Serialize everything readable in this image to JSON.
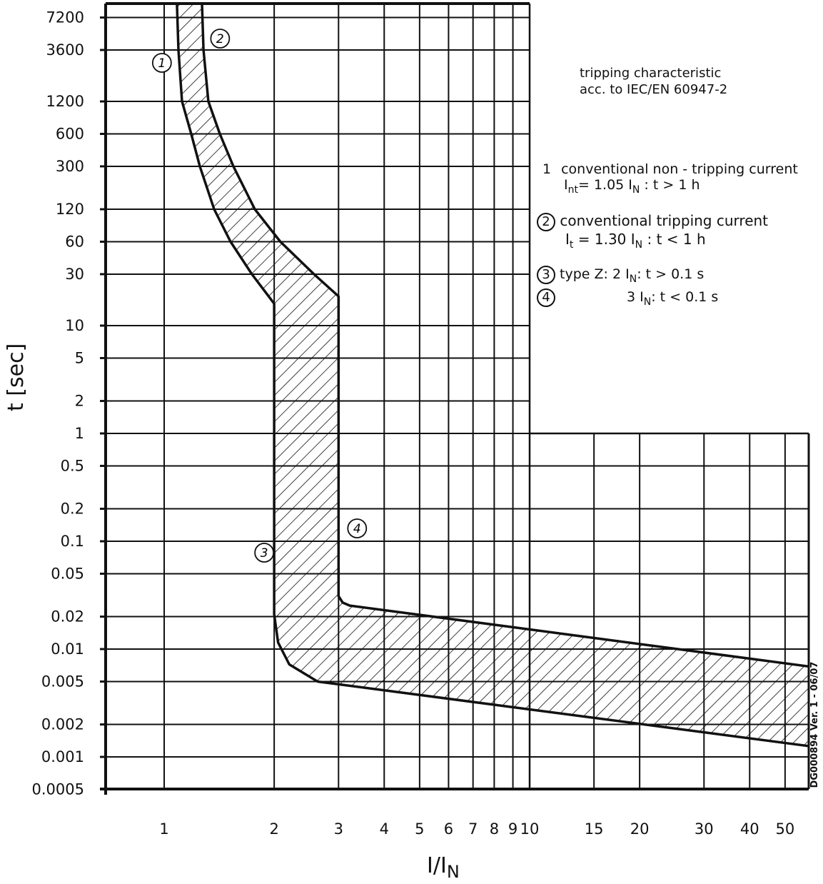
{
  "chart_data": {
    "type": "area",
    "title": "tripping characteristic",
    "subtitle": "acc. to IEC/EN 60947-2",
    "xlabel": "I/IN",
    "xlabel_main": "I/I",
    "xlabel_sub": "N",
    "ylabel": "t [sec]",
    "x_scale": "log",
    "y_scale": "log",
    "xlim": [
      0.69,
      58
    ],
    "ylim": [
      0.0005,
      9600
    ],
    "grid": true,
    "x_ticks": [
      "1",
      "2",
      "3",
      "4",
      "5",
      "6",
      "7",
      "8",
      "9",
      "10",
      "15",
      "20",
      "30",
      "40",
      "50"
    ],
    "x_tick_values": [
      1,
      2,
      3,
      4,
      5,
      6,
      7,
      8,
      9,
      10,
      15,
      20,
      30,
      40,
      50
    ],
    "y_ticks": [
      "7200",
      "3600",
      "1200",
      "600",
      "300",
      "120",
      "60",
      "30",
      "10",
      "5",
      "2",
      "1",
      "0.5",
      "0.2",
      "0.1",
      "0.05",
      "0.02",
      "0.01",
      "0.005",
      "0.002",
      "0.001",
      "0.0005"
    ],
    "y_tick_values": [
      7200,
      3600,
      1200,
      600,
      300,
      120,
      60,
      30,
      10,
      5,
      2,
      1,
      0.5,
      0.2,
      0.1,
      0.05,
      0.02,
      0.01,
      0.005,
      0.002,
      0.001,
      0.0005
    ],
    "band": {
      "lower_boundary": [
        [
          1.084,
          9600
        ],
        [
          1.094,
          3600
        ],
        [
          1.119,
          1200
        ],
        [
          1.186,
          600
        ],
        [
          1.252,
          300
        ],
        [
          1.37,
          120
        ],
        [
          1.519,
          60
        ],
        [
          1.738,
          30
        ],
        [
          2.0,
          16
        ],
        [
          2.0,
          0.021
        ],
        [
          2.05,
          0.0115
        ],
        [
          2.2,
          0.0072
        ],
        [
          2.63,
          0.005
        ],
        [
          58,
          0.00126
        ]
      ],
      "upper_boundary": [
        [
          1.269,
          9600
        ],
        [
          1.281,
          3600
        ],
        [
          1.321,
          1200
        ],
        [
          1.42,
          600
        ],
        [
          1.547,
          300
        ],
        [
          1.77,
          120
        ],
        [
          2.08,
          60
        ],
        [
          2.57,
          30
        ],
        [
          3.0,
          18.7
        ],
        [
          3.0,
          0.031
        ],
        [
          3.08,
          0.027
        ],
        [
          3.22,
          0.0253
        ],
        [
          58,
          0.0069
        ]
      ],
      "fill": "hatched"
    },
    "markers": [
      {
        "label": "1",
        "I": 1.05,
        "t": 3600
      },
      {
        "label": "2",
        "I": 1.3,
        "t": 3600
      },
      {
        "label": "3",
        "I": 2,
        "t": 0.1
      },
      {
        "label": "4",
        "I": 3,
        "t": 0.1
      }
    ],
    "legend": [
      {
        "num": "1",
        "line1": "conventional non - tripping current",
        "line2_pre": "I",
        "line2_sub": "nt",
        "line2_mid": "= 1.05 I",
        "line2_sub2": "N",
        "line2_post": " : t > 1 h"
      },
      {
        "num": "2",
        "line1": "conventional tripping current",
        "line2_pre": "I",
        "line2_sub": "t",
        "line2_mid": " = 1.30 I",
        "line2_sub2": "N",
        "line2_post": " : t < 1 h"
      },
      {
        "num": "3",
        "line1_pre": "type Z:  2 I",
        "line1_sub": "N",
        "line1_post": ": t > 0.1 s"
      },
      {
        "num": "4",
        "line1_pre": "3 I",
        "line1_sub": "N",
        "line1_post": ": t < 0.1 s"
      }
    ],
    "doc_id": "DG000894 Ver. 1 - 06/07",
    "colors": {
      "line": "#111111",
      "background": "#ffffff"
    }
  }
}
